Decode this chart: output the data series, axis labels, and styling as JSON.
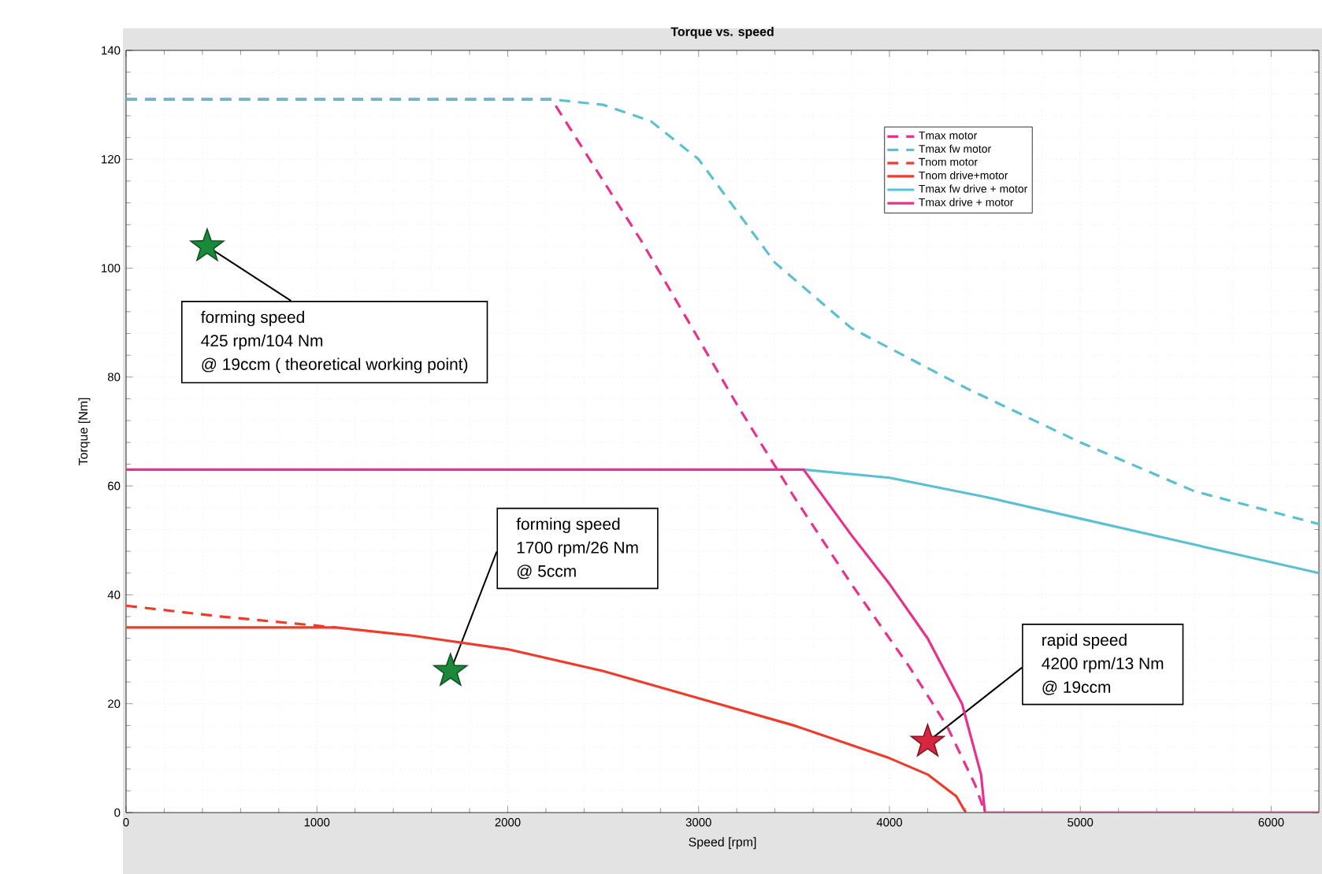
{
  "chart_data": {
    "type": "line",
    "title": "Torque vs. speed",
    "xlabel": "Speed [rpm]",
    "ylabel": "Torque [Nm]",
    "xlim": [
      0,
      6250
    ],
    "ylim": [
      0,
      140
    ],
    "xticks": [
      0,
      1000,
      2000,
      3000,
      4000,
      5000,
      6000
    ],
    "yticks": [
      0,
      20,
      40,
      60,
      80,
      100,
      120,
      140
    ],
    "grid": true,
    "legend": "top right",
    "series": [
      {
        "name": "Tmax motor",
        "color": "#e8318a",
        "line_style": "dashed",
        "marker": "none",
        "x": [
          0,
          2230,
          2700,
          3200,
          3500,
          3800,
          4100,
          4300,
          4450,
          4500
        ],
        "values": [
          131,
          131,
          105,
          75,
          58,
          42,
          27,
          16,
          5,
          0
        ]
      },
      {
        "name": "Tmax fw motor",
        "color": "#5bc0d0",
        "line_style": "dashed",
        "marker": "none",
        "x": [
          0,
          2230,
          2500,
          2750,
          3000,
          3400,
          3800,
          4400,
          5000,
          5600,
          6250
        ],
        "values": [
          131,
          131,
          130,
          127,
          120,
          101,
          89,
          78,
          68,
          59,
          53
        ]
      },
      {
        "name": "Tnom motor",
        "color": "#ef3b2c",
        "line_style": "dashed",
        "marker": "none",
        "x": [
          0,
          500,
          1100
        ],
        "values": [
          38,
          36,
          34
        ]
      },
      {
        "name": "Tnom drive+motor",
        "color": "#ef3b2c",
        "line_style": "solid",
        "marker": "none",
        "x": [
          0,
          1100,
          1500,
          2000,
          2500,
          3000,
          3500,
          4000,
          4200,
          4350,
          4400
        ],
        "values": [
          34,
          34,
          32.5,
          30,
          26,
          21,
          16,
          10,
          7,
          3,
          0
        ]
      },
      {
        "name": "Tmax fw drive + motor",
        "color": "#5bc0d0",
        "line_style": "solid",
        "marker": "none",
        "x": [
          3550,
          4000,
          4500,
          5000,
          5500,
          6250
        ],
        "values": [
          63,
          61.5,
          58,
          54,
          50,
          44
        ]
      },
      {
        "name": "Tmax drive + motor",
        "color": "#e8318a",
        "line_style": "solid",
        "marker": "none",
        "x": [
          0,
          3550,
          3800,
          4000,
          4200,
          4380,
          4480,
          4500,
          6250
        ],
        "values": [
          63,
          63,
          51,
          42,
          32,
          20,
          7,
          0,
          0
        ]
      },
      {
        "type": "scatter",
        "color": "#1a8a3a",
        "marker": "star",
        "x": [
          425
        ],
        "values": [
          104
        ]
      },
      {
        "type": "scatter",
        "color": "#1a8a3a",
        "marker": "star",
        "x": [
          1700
        ],
        "values": [
          26
        ]
      },
      {
        "type": "scatter",
        "color": "#d7263d",
        "marker": "star",
        "x": [
          4200
        ],
        "values": [
          13
        ]
      }
    ],
    "annotations": [
      {
        "text": "forming speed",
        "x": 425,
        "y": 104
      },
      "425 rpm/104 Nm",
      "@ 19ccm ( theoretical working point)",
      "forming speed",
      {
        "text": "1700 rpm/26 Nm",
        "x": 1700,
        "y": 26
      },
      "@ 5ccm",
      "rapid speed",
      {
        "text": "4200 rpm/13 Nm",
        "x": 4200,
        "y": 13
      },
      "@ 19ccm"
    ]
  }
}
